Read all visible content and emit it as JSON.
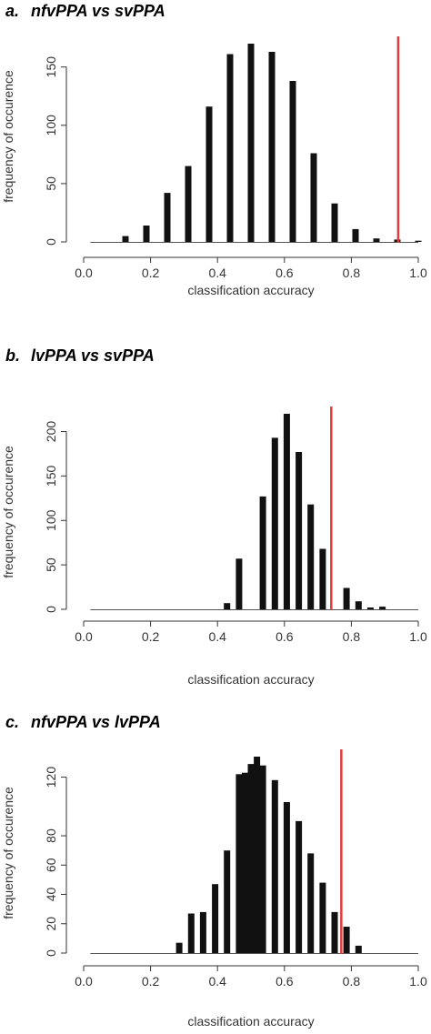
{
  "chart_data": [
    {
      "panel": "a.",
      "title": "nfvPPA vs svPPA",
      "type": "bar",
      "xlabel": "classification accuracy",
      "ylabel": "frequency of occurence",
      "xlim": [
        0.0,
        1.0
      ],
      "ylim": [
        0,
        170
      ],
      "xticks": [
        "0.0",
        "0.2",
        "0.4",
        "0.6",
        "0.8",
        "1.0"
      ],
      "yticks": [
        "0",
        "50",
        "100",
        "150"
      ],
      "x": [
        0.125,
        0.1875,
        0.25,
        0.3125,
        0.375,
        0.4375,
        0.5,
        0.5625,
        0.625,
        0.6875,
        0.75,
        0.8125,
        0.875,
        0.9375,
        1.0
      ],
      "values": [
        5,
        14,
        42,
        65,
        116,
        161,
        170,
        163,
        138,
        76,
        33,
        11,
        3,
        2,
        1
      ],
      "threshold": 0.94,
      "bar_color": "#111111",
      "threshold_color": "#e03c3c"
    },
    {
      "panel": "b.",
      "title": "lvPPA vs svPPA",
      "type": "bar",
      "xlabel": "classification accuracy",
      "ylabel": "frequency of occurence",
      "xlim": [
        0.0,
        1.0
      ],
      "ylim": [
        0,
        220
      ],
      "xticks": [
        "0.0",
        "0.2",
        "0.4",
        "0.6",
        "0.8",
        "1.0"
      ],
      "yticks": [
        "0",
        "50",
        "100",
        "150",
        "200"
      ],
      "x": [
        0.4286,
        0.4643,
        0.5357,
        0.5714,
        0.6071,
        0.6429,
        0.6786,
        0.7143,
        0.7857,
        0.8214,
        0.8571,
        0.8929
      ],
      "values": [
        7,
        57,
        127,
        193,
        220,
        177,
        118,
        68,
        24,
        9,
        2,
        3
      ],
      "threshold": 0.74,
      "bar_color": "#111111",
      "threshold_color": "#e03c3c"
    },
    {
      "panel": "c.",
      "title": "nfvPPA vs lvPPA",
      "type": "bar",
      "xlabel": "classification accuracy",
      "ylabel": "frequency of occurence",
      "xlim": [
        0.0,
        1.0
      ],
      "ylim": [
        0,
        134
      ],
      "xticks": [
        "0.0",
        "0.2",
        "0.4",
        "0.6",
        "0.8",
        "1.0"
      ],
      "yticks": [
        "0",
        "20",
        "40",
        "60",
        "80",
        "120"
      ],
      "ytick_values": [
        0,
        20,
        40,
        60,
        80,
        120
      ],
      "x": [
        0.2857,
        0.3214,
        0.3571,
        0.3929,
        0.4286,
        0.4643,
        0.4821,
        0.5,
        0.5179,
        0.5357,
        0.5714,
        0.6071,
        0.6429,
        0.6786,
        0.7143,
        0.75,
        0.7857,
        0.8214
      ],
      "values": [
        7,
        27,
        28,
        47,
        70,
        122,
        123,
        129,
        134,
        128,
        118,
        103,
        90,
        68,
        48,
        28,
        18,
        5
      ],
      "threshold": 0.77,
      "bar_color": "#111111",
      "threshold_color": "#e03c3c"
    }
  ]
}
